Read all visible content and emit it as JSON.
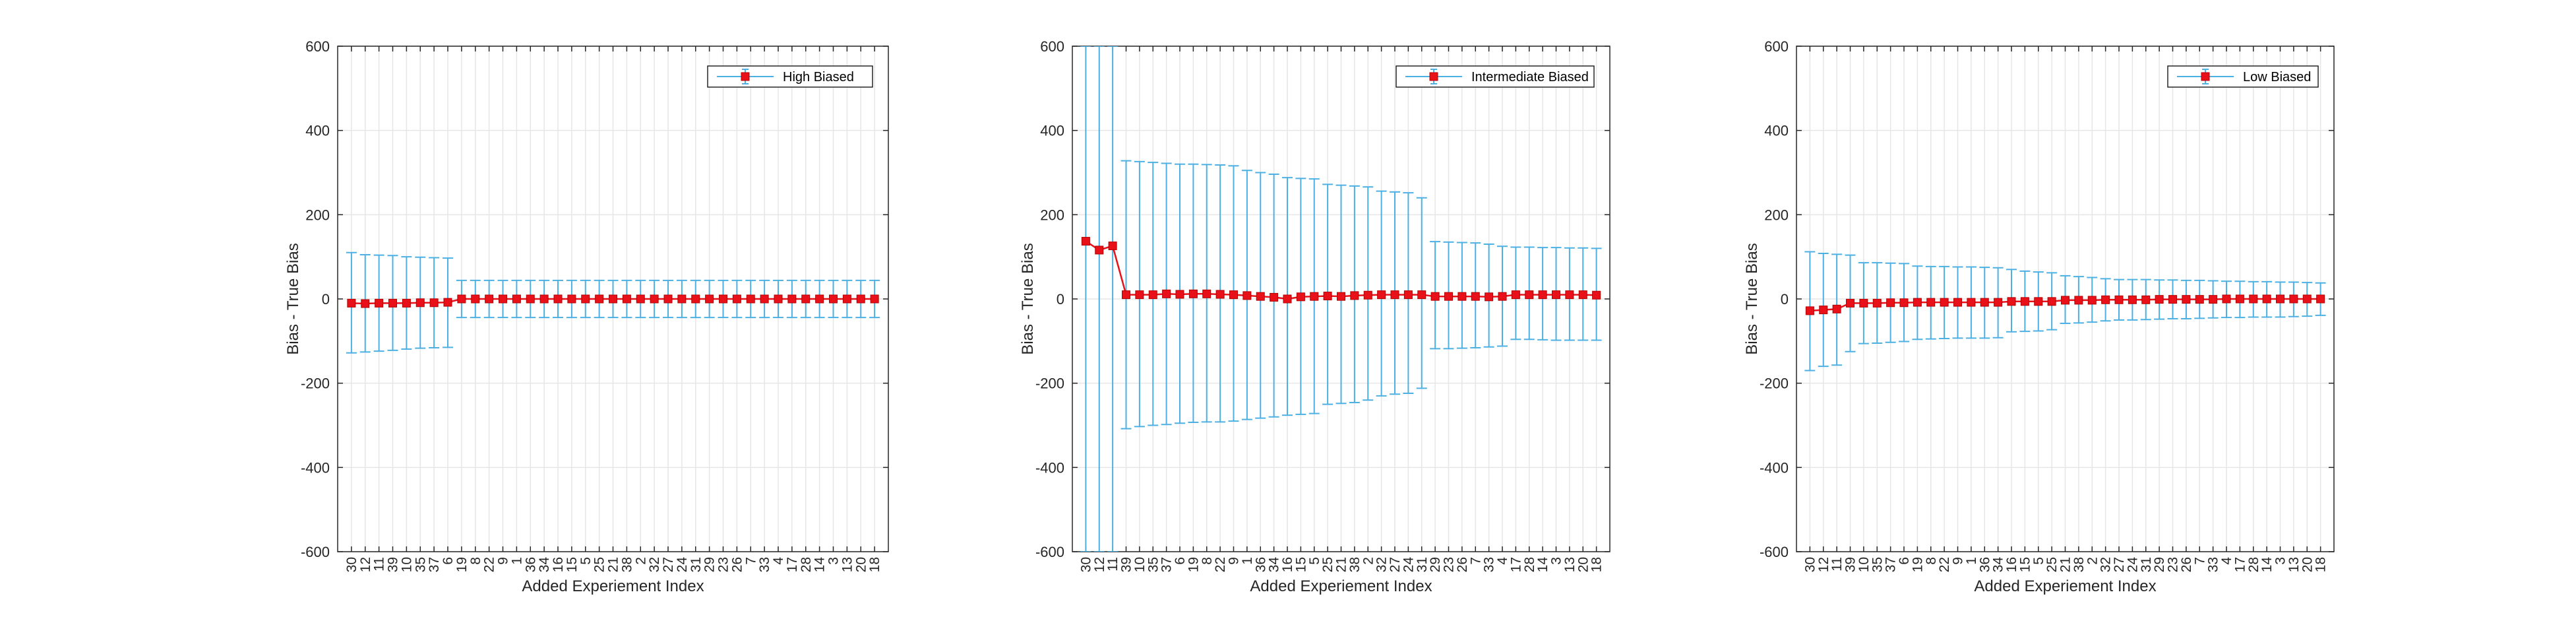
{
  "chart_data": [
    {
      "type": "errorbar",
      "xlabel": "Added Experiement Index",
      "ylabel": "Bias - True Bias",
      "ylim": [
        -600,
        600
      ],
      "yticks": [
        -600,
        -400,
        -200,
        0,
        200,
        400,
        600
      ],
      "grid": true,
      "legend": {
        "placement": "top-right"
      },
      "categories": [
        "30",
        "12",
        "11",
        "39",
        "10",
        "35",
        "37",
        "6",
        "19",
        "8",
        "22",
        "9",
        "1",
        "36",
        "34",
        "16",
        "15",
        "5",
        "25",
        "21",
        "38",
        "2",
        "32",
        "27",
        "24",
        "31",
        "29",
        "23",
        "26",
        "7",
        "33",
        "4",
        "17",
        "28",
        "14",
        "3",
        "13",
        "20",
        "18"
      ],
      "series": [
        {
          "name": "High Biased",
          "values": [
            -10,
            -11,
            -10,
            -10,
            -10,
            -9,
            -9,
            -8,
            0,
            0,
            0,
            0,
            0,
            0,
            0,
            0,
            0,
            0,
            0,
            0,
            0,
            0,
            0,
            0,
            0,
            0,
            0,
            0,
            0,
            0,
            0,
            0,
            0,
            0,
            0,
            0,
            0,
            0,
            0
          ],
          "upper": [
            110,
            105,
            104,
            103,
            100,
            99,
            98,
            97,
            44,
            44,
            44,
            44,
            44,
            44,
            44,
            44,
            44,
            44,
            44,
            44,
            44,
            44,
            44,
            44,
            44,
            44,
            44,
            44,
            44,
            44,
            44,
            44,
            44,
            44,
            44,
            44,
            44,
            44,
            44
          ],
          "lower": [
            -128,
            -126,
            -124,
            -122,
            -119,
            -117,
            -116,
            -115,
            -44,
            -44,
            -44,
            -44,
            -44,
            -44,
            -44,
            -44,
            -44,
            -44,
            -44,
            -44,
            -44,
            -44,
            -44,
            -44,
            -44,
            -44,
            -44,
            -44,
            -44,
            -44,
            -44,
            -44,
            -44,
            -44,
            -44,
            -44,
            -44,
            -44,
            -44
          ]
        }
      ]
    },
    {
      "type": "errorbar",
      "xlabel": "Added Experiement Index",
      "ylabel": "Bias - True Bias",
      "ylim": [
        -600,
        600
      ],
      "yticks": [
        -600,
        -400,
        -200,
        0,
        200,
        400,
        600
      ],
      "grid": true,
      "legend": {
        "placement": "top-right"
      },
      "categories": [
        "30",
        "12",
        "11",
        "39",
        "10",
        "35",
        "37",
        "6",
        "19",
        "8",
        "22",
        "9",
        "1",
        "36",
        "34",
        "16",
        "15",
        "5",
        "25",
        "21",
        "38",
        "2",
        "32",
        "27",
        "24",
        "31",
        "29",
        "23",
        "26",
        "7",
        "33",
        "4",
        "17",
        "28",
        "14",
        "3",
        "13",
        "20",
        "18"
      ],
      "series": [
        {
          "name": "Intermediate Biased",
          "values": [
            137,
            116,
            126,
            10,
            10,
            10,
            12,
            11,
            12,
            12,
            11,
            10,
            8,
            6,
            4,
            0,
            5,
            6,
            7,
            6,
            8,
            9,
            10,
            10,
            10,
            10,
            6,
            6,
            6,
            6,
            5,
            6,
            10,
            10,
            10,
            10,
            10,
            10,
            9
          ],
          "upper": [
            700,
            700,
            700,
            328,
            326,
            324,
            322,
            320,
            320,
            319,
            318,
            316,
            305,
            300,
            296,
            288,
            286,
            285,
            272,
            270,
            268,
            266,
            256,
            254,
            252,
            240,
            136,
            135,
            134,
            133,
            130,
            125,
            123,
            123,
            122,
            122,
            121,
            121,
            120
          ],
          "lower": [
            -700,
            -700,
            -700,
            -308,
            -303,
            -300,
            -298,
            -295,
            -293,
            -292,
            -292,
            -290,
            -286,
            -283,
            -280,
            -276,
            -274,
            -272,
            -250,
            -248,
            -246,
            -240,
            -230,
            -226,
            -224,
            -212,
            -118,
            -118,
            -117,
            -116,
            -114,
            -112,
            -96,
            -96,
            -97,
            -98,
            -98,
            -98,
            -98
          ]
        }
      ]
    },
    {
      "type": "errorbar",
      "xlabel": "Added Experiement Index",
      "ylabel": "Bias - True Bias",
      "ylim": [
        -600,
        600
      ],
      "yticks": [
        -600,
        -400,
        -200,
        0,
        200,
        400,
        600
      ],
      "grid": true,
      "legend": {
        "placement": "top-right"
      },
      "categories": [
        "30",
        "12",
        "11",
        "39",
        "10",
        "35",
        "37",
        "6",
        "19",
        "8",
        "22",
        "9",
        "1",
        "36",
        "34",
        "16",
        "15",
        "5",
        "25",
        "21",
        "38",
        "2",
        "32",
        "27",
        "24",
        "31",
        "29",
        "23",
        "26",
        "7",
        "33",
        "4",
        "17",
        "28",
        "14",
        "3",
        "13",
        "20",
        "18"
      ],
      "series": [
        {
          "name": "Low Biased",
          "values": [
            -28,
            -26,
            -24,
            -10,
            -10,
            -10,
            -9,
            -9,
            -8,
            -8,
            -8,
            -8,
            -8,
            -8,
            -8,
            -6,
            -6,
            -6,
            -6,
            -3,
            -3,
            -3,
            -2,
            -2,
            -2,
            -2,
            -1,
            -1,
            -1,
            -1,
            -1,
            0,
            0,
            0,
            0,
            0,
            0,
            0,
            0
          ],
          "upper": [
            112,
            108,
            106,
            104,
            86,
            86,
            85,
            84,
            78,
            77,
            77,
            76,
            76,
            75,
            74,
            70,
            66,
            64,
            62,
            55,
            53,
            51,
            48,
            46,
            46,
            46,
            45,
            45,
            44,
            44,
            43,
            42,
            42,
            41,
            41,
            40,
            40,
            39,
            38
          ],
          "lower": [
            -170,
            -160,
            -157,
            -125,
            -106,
            -105,
            -103,
            -101,
            -96,
            -95,
            -94,
            -93,
            -93,
            -93,
            -92,
            -78,
            -77,
            -76,
            -73,
            -58,
            -57,
            -55,
            -52,
            -50,
            -50,
            -49,
            -48,
            -47,
            -47,
            -46,
            -45,
            -44,
            -44,
            -43,
            -43,
            -43,
            -42,
            -41,
            -39
          ]
        }
      ]
    }
  ],
  "colors": {
    "errorbar": "#4cb0e3",
    "marker": "#e8111a",
    "markerEdge": "#b30000",
    "grid": "#e6e6e6",
    "axis": "#262626"
  }
}
